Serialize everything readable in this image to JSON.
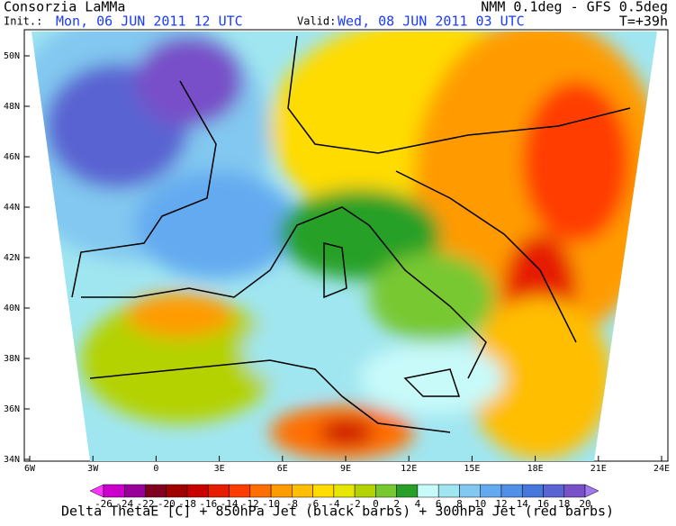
{
  "header": {
    "title": "Consorzia LaMMa",
    "init_label": "Init.:",
    "init_time": "Mon, 06 JUN 2011   12 UTC",
    "model": "NMM 0.1deg - GFS 0.5deg",
    "valid_label": "Valid:",
    "valid_time": "Wed, 08 JUN 2011  03 UTC",
    "lead": "T=+39h"
  },
  "map": {
    "lat_labels": [
      "50N",
      "48N",
      "46N",
      "44N",
      "42N",
      "40N",
      "38N",
      "36N",
      "34N"
    ],
    "lon_labels": [
      "6W",
      "3W",
      "0",
      "3E",
      "6E",
      "9E",
      "12E",
      "15E",
      "18E",
      "21E",
      "24E"
    ]
  },
  "legend": {
    "levels": [
      -26,
      -24,
      -22,
      -20,
      -18,
      -16,
      -14,
      -12,
      -10,
      -8,
      -6,
      -4,
      -2,
      0,
      2,
      4,
      6,
      8,
      10,
      12,
      14,
      16,
      18,
      20
    ],
    "colors": [
      "#ff33ff",
      "#cc00cc",
      "#990099",
      "#800020",
      "#a00000",
      "#c80000",
      "#e61e00",
      "#ff3c00",
      "#ff6e00",
      "#ff9b00",
      "#ffbe00",
      "#ffdc00",
      "#e6e600",
      "#b4d200",
      "#78c832",
      "#28a028",
      "#c8fafa",
      "#a0e6f0",
      "#82c8f0",
      "#64aaf0",
      "#5090e6",
      "#4678dc",
      "#5a64d2",
      "#7850c8",
      "#a078f0"
    ],
    "caption": "Delta ThetaE [C] + 850hPa Jet (black barbs) + 300hPa Jet (red barbs)"
  }
}
